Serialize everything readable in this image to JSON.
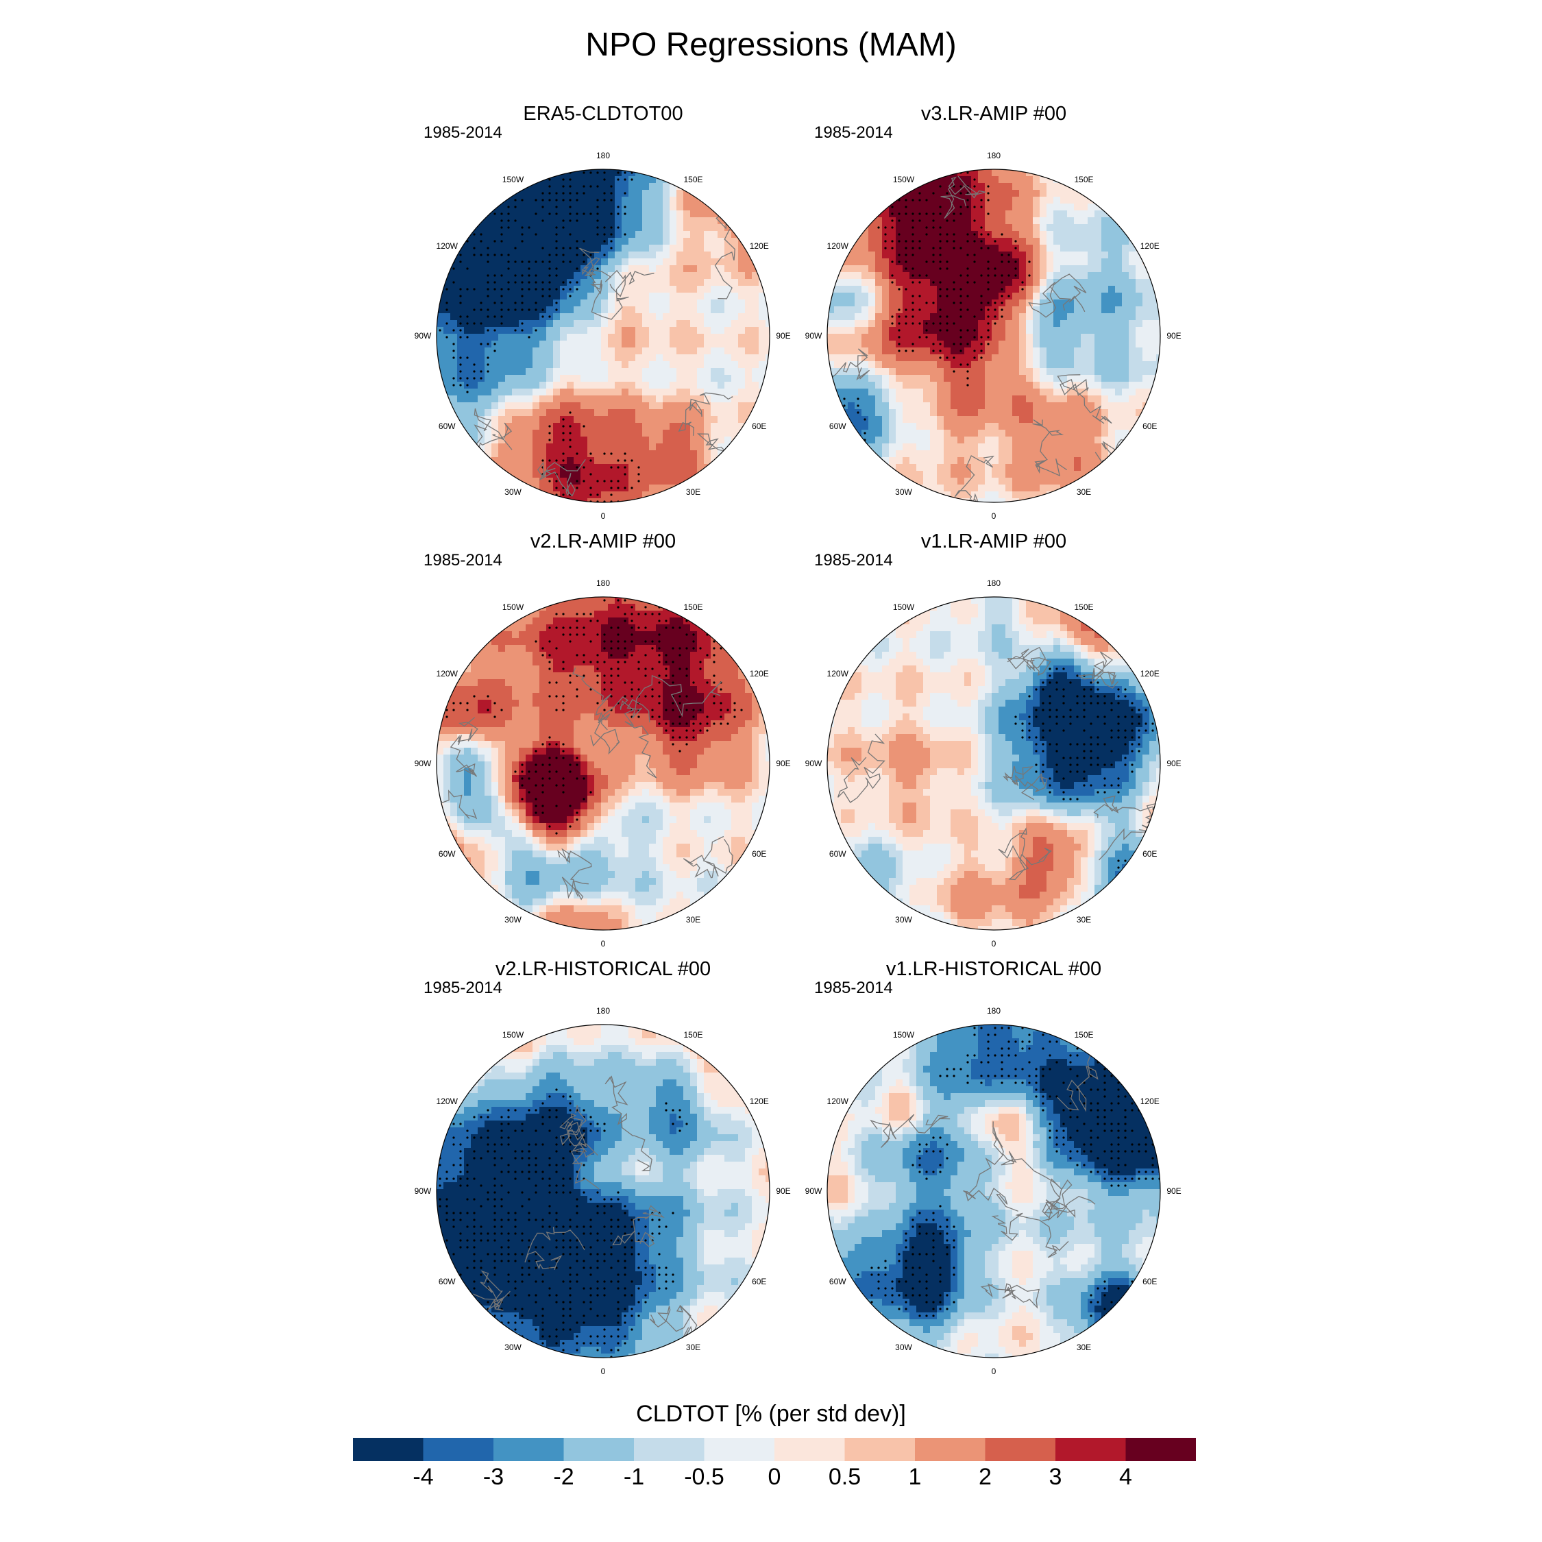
{
  "title": "NPO Regressions (MAM)",
  "lon_labels": [
    "180",
    "150E",
    "120E",
    "90E",
    "60E",
    "30E",
    "0",
    "30W",
    "60W",
    "90W",
    "120W",
    "150W"
  ],
  "panels": [
    {
      "title": "ERA5-CLDTOT00",
      "period": "1985-2014",
      "seed": 11
    },
    {
      "title": "v3.LR-AMIP  #00",
      "period": "1985-2014",
      "seed": 23
    },
    {
      "title": "v2.LR-AMIP  #00",
      "period": "1985-2014",
      "seed": 37
    },
    {
      "title": "v1.LR-AMIP  #00",
      "period": "1985-2014",
      "seed": 41
    },
    {
      "title": "v2.LR-HISTORICAL  #00",
      "period": "1985-2014",
      "seed": 53
    },
    {
      "title": "v1.LR-HISTORICAL  #00",
      "period": "1985-2014",
      "seed": 67
    }
  ],
  "chart_data": {
    "type": "heatmap",
    "projection": "north polar stereographic",
    "variable": "CLDTOT",
    "colorbar_title": "CLDTOT [% (per std dev)]",
    "levels": [
      -4,
      -3,
      -2,
      -1,
      -0.5,
      0,
      0.5,
      1,
      2,
      3,
      4
    ],
    "level_labels": [
      "-4",
      "-3",
      "-2",
      "-1",
      "-0.5",
      "0",
      "0.5",
      "1",
      "2",
      "3",
      "4"
    ],
    "colors": [
      "#053061",
      "#2166ac",
      "#4393c3",
      "#92c5de",
      "#c5dcea",
      "#e9eff4",
      "#fbe6dc",
      "#f8c3aa",
      "#eb9476",
      "#d6604d",
      "#b2182b",
      "#67001f"
    ]
  }
}
